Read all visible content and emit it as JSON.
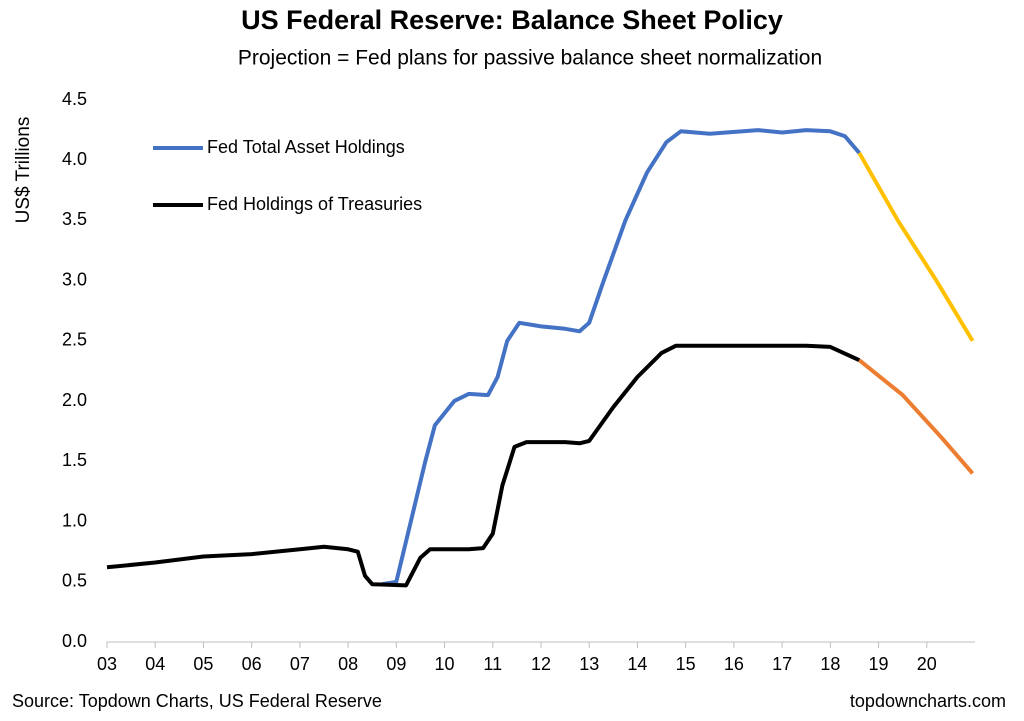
{
  "chart_data": {
    "type": "line",
    "title": "US Federal Reserve: Balance Sheet Policy",
    "subtitle": "Projection = Fed plans for passive balance sheet normalization",
    "y_label": "US$ Trillions",
    "source": "Source: Topdown Charts, US Federal Reserve",
    "watermark": "topdowncharts.com",
    "xlim": [
      2003,
      2021
    ],
    "xticks": [
      {
        "value": 2003,
        "label": "03"
      },
      {
        "value": 2004,
        "label": "04"
      },
      {
        "value": 2005,
        "label": "05"
      },
      {
        "value": 2006,
        "label": "06"
      },
      {
        "value": 2007,
        "label": "07"
      },
      {
        "value": 2008,
        "label": "08"
      },
      {
        "value": 2009,
        "label": "09"
      },
      {
        "value": 2010,
        "label": "10"
      },
      {
        "value": 2011,
        "label": "11"
      },
      {
        "value": 2012,
        "label": "12"
      },
      {
        "value": 2013,
        "label": "13"
      },
      {
        "value": 2014,
        "label": "14"
      },
      {
        "value": 2015,
        "label": "15"
      },
      {
        "value": 2016,
        "label": "16"
      },
      {
        "value": 2017,
        "label": "17"
      },
      {
        "value": 2018,
        "label": "18"
      },
      {
        "value": 2019,
        "label": "19"
      },
      {
        "value": 2020,
        "label": "20"
      }
    ],
    "ylim": [
      0,
      4.5
    ],
    "yticks": [
      {
        "value": 0,
        "label": "0.0"
      },
      0.5,
      {
        "value": 1,
        "label": "1.0"
      },
      1.5,
      {
        "value": 2,
        "label": "2.0"
      },
      2.5,
      {
        "value": 3,
        "label": "3.0"
      },
      3.5,
      {
        "value": 4,
        "label": "4.0"
      },
      4.5
    ],
    "grid": false,
    "legend": "upper left",
    "series": [
      {
        "name": "Fed Total Asset Holdings",
        "color": "#4472c4",
        "x": [
          2008.7,
          2009.0,
          2009.3,
          2009.6,
          2009.8,
          2010.2,
          2010.5,
          2010.9,
          2011.1,
          2011.3,
          2011.55,
          2012.0,
          2012.5,
          2012.8,
          2013.0,
          2013.3,
          2013.75,
          2014.2,
          2014.6,
          2014.9,
          2015.5,
          2016.5,
          2017.0,
          2017.5,
          2018.0,
          2018.3,
          2018.6
        ],
        "values": [
          0.48,
          0.5,
          1.0,
          1.5,
          1.8,
          2.0,
          2.06,
          2.05,
          2.2,
          2.5,
          2.65,
          2.62,
          2.6,
          2.58,
          2.65,
          3.0,
          3.5,
          3.9,
          4.15,
          4.24,
          4.22,
          4.25,
          4.23,
          4.25,
          4.24,
          4.2,
          4.06
        ]
      },
      {
        "name": "Fed Holdings of Treasuries",
        "color": "#000000",
        "x": [
          2003.0,
          2004.0,
          2005.0,
          2006.0,
          2007.0,
          2007.5,
          2008.0,
          2008.2,
          2008.35,
          2008.5,
          2009.2,
          2009.5,
          2009.7,
          2010.5,
          2010.8,
          2011.0,
          2011.2,
          2011.45,
          2011.7,
          2012.5,
          2012.8,
          2013.0,
          2013.5,
          2014.0,
          2014.5,
          2014.8,
          2016.0,
          2017.5,
          2018.0,
          2018.6
        ],
        "values": [
          0.62,
          0.66,
          0.71,
          0.73,
          0.77,
          0.79,
          0.77,
          0.75,
          0.55,
          0.48,
          0.47,
          0.7,
          0.77,
          0.77,
          0.78,
          0.9,
          1.3,
          1.62,
          1.66,
          1.66,
          1.65,
          1.67,
          1.95,
          2.2,
          2.4,
          2.46,
          2.46,
          2.46,
          2.45,
          2.34
        ]
      },
      {
        "color": "#ffc000",
        "x": [
          2018.6,
          2019.4,
          2020.2,
          2020.95
        ],
        "values": [
          4.06,
          3.5,
          3.0,
          2.5
        ]
      },
      {
        "color": "#ed7d31",
        "x": [
          2018.6,
          2019.5,
          2020.3,
          2020.95
        ],
        "values": [
          2.34,
          2.05,
          1.7,
          1.4
        ]
      }
    ]
  }
}
